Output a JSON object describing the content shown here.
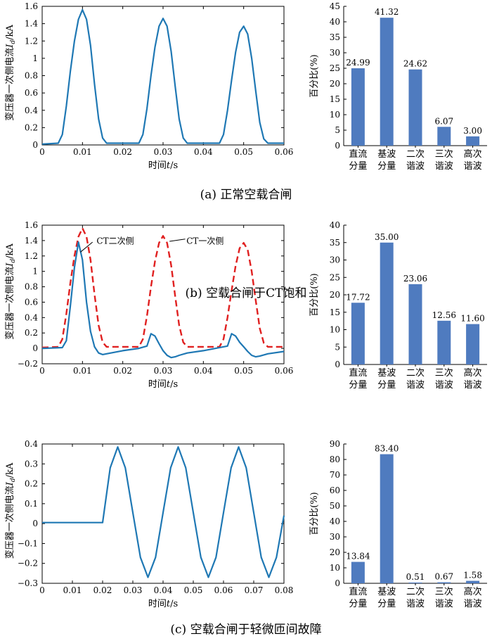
{
  "colors": {
    "line": "#1f78b4",
    "dashed": "#e02020",
    "bar": "#4f7bbf",
    "axis": "#000000"
  },
  "captions": [
    "(a) 正常空载合闸",
    "(b) 空载合闸于CT饱和",
    "(c) 空载合闸于轻微匝间故障"
  ],
  "chart_data": [
    {
      "id": "a-line",
      "type": "line",
      "xlabel": "时间t/s",
      "ylabel": "变压器一次侧电流Id/kA",
      "xlim": [
        0,
        0.06
      ],
      "ylim": [
        0,
        1.6
      ],
      "xticks": [
        0,
        0.01,
        0.02,
        0.03,
        0.04,
        0.05,
        0.06
      ],
      "xtick_labels": [
        "0",
        "0.01",
        "0.02",
        "0.03",
        "0.04",
        "0.05",
        "0.06"
      ],
      "yticks": [
        0,
        0.2,
        0.4,
        0.6,
        0.8,
        1.0,
        1.2,
        1.4,
        1.6
      ],
      "ytick_labels": [
        "0",
        "0.2",
        "0.4",
        "0.6",
        "0.8",
        "1",
        "1.2",
        "1.4",
        "1.6"
      ],
      "series": [
        {
          "style": "solid",
          "x": [
            0,
            0.004,
            0.005,
            0.006,
            0.007,
            0.008,
            0.009,
            0.01,
            0.011,
            0.012,
            0.013,
            0.014,
            0.015,
            0.016,
            0.024,
            0.025,
            0.026,
            0.027,
            0.028,
            0.029,
            0.03,
            0.031,
            0.032,
            0.033,
            0.034,
            0.035,
            0.036,
            0.044,
            0.045,
            0.046,
            0.047,
            0.048,
            0.049,
            0.05,
            0.051,
            0.052,
            0.053,
            0.054,
            0.055,
            0.056,
            0.06
          ],
          "y": [
            0.01,
            0.02,
            0.12,
            0.45,
            0.85,
            1.2,
            1.45,
            1.56,
            1.45,
            1.15,
            0.7,
            0.3,
            0.08,
            0.02,
            0.02,
            0.12,
            0.42,
            0.8,
            1.13,
            1.37,
            1.46,
            1.37,
            1.08,
            0.68,
            0.3,
            0.08,
            0.02,
            0.02,
            0.12,
            0.4,
            0.75,
            1.07,
            1.3,
            1.37,
            1.28,
            1.0,
            0.62,
            0.26,
            0.07,
            0.02,
            0.02
          ]
        }
      ]
    },
    {
      "id": "a-bar",
      "type": "bar",
      "ylabel": "百分比(%)",
      "ylim": [
        0,
        45
      ],
      "yticks": [
        0,
        5,
        10,
        15,
        20,
        25,
        30,
        35,
        40,
        45
      ],
      "ytick_labels": [
        "0",
        "5",
        "10",
        "15",
        "20",
        "25",
        "30",
        "35",
        "40",
        "45"
      ],
      "categories": [
        [
          "直流",
          "分量"
        ],
        [
          "基波",
          "分量"
        ],
        [
          "二次",
          "谐波"
        ],
        [
          "三次",
          "谐波"
        ],
        [
          "高次",
          "谐波"
        ]
      ],
      "values": [
        24.99,
        41.32,
        24.62,
        6.07,
        3.0
      ],
      "value_labels": [
        "24.99",
        "41.32",
        "24.62",
        "6.07",
        "3.00"
      ]
    },
    {
      "id": "b-line",
      "type": "line",
      "xlabel": "时间t/s",
      "ylabel": "变压器一次侧电流Id/kA",
      "xlim": [
        0,
        0.06
      ],
      "ylim": [
        -0.2,
        1.6
      ],
      "xticks": [
        0,
        0.01,
        0.02,
        0.03,
        0.04,
        0.05,
        0.06
      ],
      "xtick_labels": [
        "0",
        "0.01",
        "0.02",
        "0.03",
        "0.04",
        "0.05",
        "0.06"
      ],
      "yticks": [
        -0.2,
        0,
        0.2,
        0.4,
        0.6,
        0.8,
        1.0,
        1.2,
        1.4,
        1.6
      ],
      "ytick_labels": [
        "−0.2",
        "0",
        "0.2",
        "0.4",
        "0.6",
        "0.8",
        "1",
        "1.2",
        "1.4",
        "1.6"
      ],
      "annotations": [
        "CT二次侧",
        "CT一次侧"
      ],
      "series": [
        {
          "style": "dashed",
          "name": "CT一次侧",
          "x": [
            0,
            0.004,
            0.005,
            0.006,
            0.007,
            0.008,
            0.009,
            0.01,
            0.011,
            0.012,
            0.013,
            0.014,
            0.015,
            0.016,
            0.024,
            0.025,
            0.026,
            0.027,
            0.028,
            0.029,
            0.03,
            0.031,
            0.032,
            0.033,
            0.034,
            0.035,
            0.036,
            0.044,
            0.045,
            0.046,
            0.047,
            0.048,
            0.049,
            0.05,
            0.051,
            0.052,
            0.053,
            0.054,
            0.055,
            0.056,
            0.06
          ],
          "y": [
            0.01,
            0.02,
            0.12,
            0.45,
            0.85,
            1.2,
            1.45,
            1.56,
            1.45,
            1.15,
            0.7,
            0.3,
            0.08,
            0.02,
            0.02,
            0.12,
            0.42,
            0.8,
            1.13,
            1.37,
            1.46,
            1.37,
            1.08,
            0.68,
            0.3,
            0.08,
            0.02,
            0.02,
            0.12,
            0.4,
            0.75,
            1.07,
            1.3,
            1.37,
            1.28,
            1.0,
            0.62,
            0.26,
            0.07,
            0.02,
            0.02
          ]
        },
        {
          "style": "solid",
          "name": "CT二次侧",
          "x": [
            0,
            0.005,
            0.006,
            0.007,
            0.008,
            0.009,
            0.01,
            0.011,
            0.012,
            0.013,
            0.014,
            0.015,
            0.016,
            0.02,
            0.024,
            0.026,
            0.027,
            0.028,
            0.029,
            0.03,
            0.031,
            0.032,
            0.033,
            0.034,
            0.036,
            0.04,
            0.046,
            0.047,
            0.048,
            0.049,
            0.05,
            0.051,
            0.052,
            0.053,
            0.054,
            0.056,
            0.06
          ],
          "y": [
            0.0,
            0.01,
            0.1,
            0.55,
            1.05,
            1.38,
            1.15,
            0.6,
            0.22,
            0.02,
            -0.06,
            -0.08,
            -0.07,
            -0.03,
            0.0,
            0.03,
            0.19,
            0.16,
            0.06,
            -0.03,
            -0.09,
            -0.12,
            -0.11,
            -0.09,
            -0.06,
            -0.03,
            0.03,
            0.19,
            0.16,
            0.08,
            0.02,
            -0.04,
            -0.09,
            -0.11,
            -0.1,
            -0.07,
            -0.04
          ]
        }
      ]
    },
    {
      "id": "b-bar",
      "type": "bar",
      "ylabel": "百分比(%)",
      "ylim": [
        0,
        40
      ],
      "yticks": [
        0,
        5,
        10,
        15,
        20,
        25,
        30,
        35,
        40
      ],
      "ytick_labels": [
        "0",
        "5",
        "10",
        "15",
        "20",
        "25",
        "30",
        "35",
        "40"
      ],
      "categories": [
        [
          "直流",
          "分量"
        ],
        [
          "基波",
          "分量"
        ],
        [
          "二次",
          "谐波"
        ],
        [
          "三次",
          "谐波"
        ],
        [
          "高次",
          "谐波"
        ]
      ],
      "values": [
        17.72,
        35.0,
        23.06,
        12.56,
        11.6
      ],
      "value_labels": [
        "17.72",
        "35.00",
        "23.06",
        "12.56",
        "11.60"
      ]
    },
    {
      "id": "c-line",
      "type": "line",
      "xlabel": "时间t/s",
      "ylabel": "变压器一次侧电流Id/kA",
      "xlim": [
        0,
        0.08
      ],
      "ylim": [
        -0.3,
        0.4
      ],
      "xticks": [
        0,
        0.01,
        0.02,
        0.03,
        0.04,
        0.05,
        0.06,
        0.07,
        0.08
      ],
      "xtick_labels": [
        "0",
        "0.01",
        "0.02",
        "0.03",
        "0.04",
        "0.05",
        "0.06",
        "0.07",
        "0.08"
      ],
      "yticks": [
        -0.3,
        -0.2,
        -0.1,
        0,
        0.1,
        0.2,
        0.3,
        0.4
      ],
      "ytick_labels": [
        "−0.3",
        "−0.2",
        "−0.1",
        "0",
        "0.1",
        "0.2",
        "0.3",
        "0.4"
      ],
      "series": [
        {
          "style": "solid",
          "x": [
            0,
            0.02,
            0.0225,
            0.025,
            0.0275,
            0.03,
            0.0325,
            0.035,
            0.0375,
            0.04,
            0.0425,
            0.045,
            0.0475,
            0.05,
            0.0525,
            0.055,
            0.0575,
            0.06,
            0.0625,
            0.065,
            0.0675,
            0.07,
            0.0725,
            0.075,
            0.0775,
            0.08
          ],
          "y": [
            0.005,
            0.005,
            0.28,
            0.385,
            0.28,
            0.055,
            -0.17,
            -0.27,
            -0.17,
            0.055,
            0.28,
            0.385,
            0.28,
            0.055,
            -0.17,
            -0.27,
            -0.17,
            0.055,
            0.28,
            0.385,
            0.28,
            0.055,
            -0.17,
            -0.27,
            -0.17,
            0.04
          ]
        }
      ]
    },
    {
      "id": "c-bar",
      "type": "bar",
      "ylabel": "百分比(%)",
      "ylim": [
        0,
        90
      ],
      "yticks": [
        0,
        10,
        20,
        30,
        40,
        50,
        60,
        70,
        80,
        90
      ],
      "ytick_labels": [
        "0",
        "10",
        "20",
        "30",
        "40",
        "50",
        "60",
        "70",
        "80",
        "90"
      ],
      "categories": [
        [
          "直流",
          "分量"
        ],
        [
          "基波",
          "分量"
        ],
        [
          "二次",
          "谐波"
        ],
        [
          "三次",
          "谐波"
        ],
        [
          "高次",
          "谐波"
        ]
      ],
      "values": [
        13.84,
        83.4,
        0.51,
        0.67,
        1.58
      ],
      "value_labels": [
        "13.84",
        "83.40",
        "0.51",
        "0.67",
        "1.58"
      ]
    }
  ]
}
